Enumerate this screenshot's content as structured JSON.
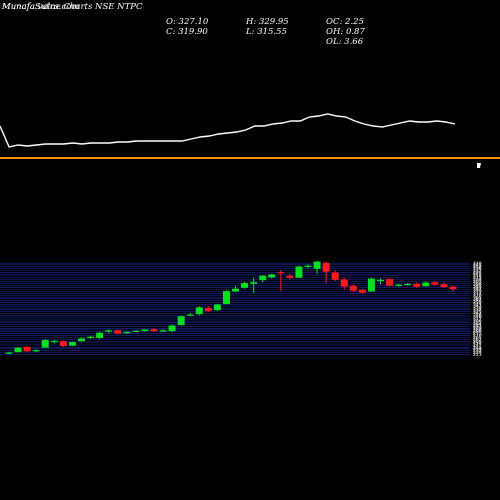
{
  "header": {
    "brand": "MunafaSutra.com",
    "title": "Munafa value Charts NSE NTPC",
    "ohlc": {
      "o": "O: 327.10",
      "h": "H: 329.95",
      "oc": "OC: 2.25",
      "c": "C: 319.90",
      "l": "L: 315.55",
      "oh": "OH: 0.87",
      "ol": "OL: 3.66"
    }
  },
  "colors": {
    "background": "#000000",
    "up": "#00e020",
    "down": "#ff1a1a",
    "indicator_line": "#ffffff",
    "orange_line": "#ff8c00",
    "grid": "#1a2a9a"
  },
  "chart_data": [
    {
      "type": "line",
      "title": "",
      "x": [
        0,
        1,
        2,
        3,
        4,
        5,
        6,
        7,
        8,
        9,
        10,
        11,
        12,
        13,
        14,
        15,
        16,
        17,
        18,
        19,
        20,
        21,
        22,
        23,
        24,
        25,
        26,
        27,
        28,
        29,
        30,
        31,
        32,
        33,
        34,
        35,
        36,
        37,
        38,
        39,
        40,
        41,
        42,
        43,
        44,
        45,
        46,
        47,
        48,
        49,
        50
      ],
      "values": [
        126,
        147,
        145,
        146,
        145,
        144,
        144,
        144,
        143,
        144,
        143,
        143,
        143,
        142,
        142,
        141,
        141,
        141,
        141,
        141,
        141,
        139,
        137,
        136,
        134,
        133,
        132,
        130,
        126,
        126,
        124,
        123,
        121,
        121,
        117,
        116,
        114,
        116,
        117,
        121,
        124,
        126,
        127,
        125,
        123,
        121,
        122,
        122,
        121,
        122,
        124
      ],
      "ylim": [
        100,
        170
      ]
    },
    {
      "type": "candlestick",
      "ylabel": "",
      "ylim": [
        222,
        452
      ],
      "yticks": [
        223,
        229,
        233,
        238,
        241,
        247,
        252,
        256,
        261,
        265,
        270,
        275,
        280,
        284,
        288,
        293,
        297,
        302,
        306,
        311,
        316,
        320,
        324,
        329,
        334,
        338,
        343,
        347,
        352,
        356,
        361,
        365,
        370,
        374,
        379,
        384,
        389,
        393,
        398,
        403,
        408,
        413,
        418,
        422,
        426,
        431,
        436,
        440,
        445,
        449
      ],
      "candles": [
        {
          "o": 226,
          "h": 230,
          "l": 224,
          "c": 228
        },
        {
          "o": 229,
          "h": 242,
          "l": 229,
          "c": 240
        },
        {
          "o": 242,
          "h": 244,
          "l": 229,
          "c": 231
        },
        {
          "o": 232,
          "h": 236,
          "l": 229,
          "c": 234
        },
        {
          "o": 240,
          "h": 261,
          "l": 240,
          "c": 259
        },
        {
          "o": 255,
          "h": 259,
          "l": 250,
          "c": 257
        },
        {
          "o": 256,
          "h": 258,
          "l": 242,
          "c": 244
        },
        {
          "o": 245,
          "h": 255,
          "l": 244,
          "c": 254
        },
        {
          "o": 256,
          "h": 265,
          "l": 255,
          "c": 263
        },
        {
          "o": 264,
          "h": 270,
          "l": 262,
          "c": 267
        },
        {
          "o": 264,
          "h": 279,
          "l": 262,
          "c": 277
        },
        {
          "o": 280,
          "h": 285,
          "l": 276,
          "c": 283
        },
        {
          "o": 283,
          "h": 285,
          "l": 273,
          "c": 275
        },
        {
          "o": 276,
          "h": 281,
          "l": 274,
          "c": 279
        },
        {
          "o": 281,
          "h": 283,
          "l": 279,
          "c": 282
        },
        {
          "o": 281,
          "h": 286,
          "l": 280,
          "c": 285
        },
        {
          "o": 286,
          "h": 288,
          "l": 279,
          "c": 281
        },
        {
          "o": 280,
          "h": 286,
          "l": 279,
          "c": 283
        },
        {
          "o": 281,
          "h": 297,
          "l": 279,
          "c": 295
        },
        {
          "o": 296,
          "h": 320,
          "l": 295,
          "c": 318
        },
        {
          "o": 320,
          "h": 326,
          "l": 318,
          "c": 322
        },
        {
          "o": 323,
          "h": 342,
          "l": 320,
          "c": 340
        },
        {
          "o": 338,
          "h": 342,
          "l": 328,
          "c": 331
        },
        {
          "o": 333,
          "h": 349,
          "l": 331,
          "c": 347
        },
        {
          "o": 348,
          "h": 382,
          "l": 347,
          "c": 380
        },
        {
          "o": 379,
          "h": 393,
          "l": 378,
          "c": 386
        },
        {
          "o": 388,
          "h": 403,
          "l": 386,
          "c": 400
        },
        {
          "o": 398,
          "h": 413,
          "l": 375,
          "c": 402
        },
        {
          "o": 407,
          "h": 420,
          "l": 401,
          "c": 418
        },
        {
          "o": 414,
          "h": 423,
          "l": 411,
          "c": 421
        },
        {
          "o": 427,
          "h": 432,
          "l": 380,
          "c": 424
        },
        {
          "o": 418,
          "h": 422,
          "l": 409,
          "c": 413
        },
        {
          "o": 413,
          "h": 443,
          "l": 413,
          "c": 441
        },
        {
          "o": 441,
          "h": 446,
          "l": 436,
          "c": 443
        },
        {
          "o": 435,
          "h": 455,
          "l": 423,
          "c": 453
        },
        {
          "o": 450,
          "h": 453,
          "l": 400,
          "c": 428
        },
        {
          "o": 426,
          "h": 432,
          "l": 405,
          "c": 408
        },
        {
          "o": 409,
          "h": 413,
          "l": 384,
          "c": 391
        },
        {
          "o": 393,
          "h": 397,
          "l": 378,
          "c": 381
        },
        {
          "o": 383,
          "h": 385,
          "l": 374,
          "c": 376
        },
        {
          "o": 379,
          "h": 413,
          "l": 379,
          "c": 411
        },
        {
          "o": 405,
          "h": 412,
          "l": 397,
          "c": 408
        },
        {
          "o": 410,
          "h": 412,
          "l": 391,
          "c": 394
        },
        {
          "o": 395,
          "h": 398,
          "l": 391,
          "c": 396
        },
        {
          "o": 397,
          "h": 400,
          "l": 394,
          "c": 398
        },
        {
          "o": 398,
          "h": 401,
          "l": 388,
          "c": 391
        },
        {
          "o": 392,
          "h": 404,
          "l": 391,
          "c": 401
        },
        {
          "o": 402,
          "h": 405,
          "l": 394,
          "c": 396
        },
        {
          "o": 397,
          "h": 401,
          "l": 388,
          "c": 390
        },
        {
          "o": 391,
          "h": 393,
          "l": 380,
          "c": 385
        }
      ]
    }
  ]
}
